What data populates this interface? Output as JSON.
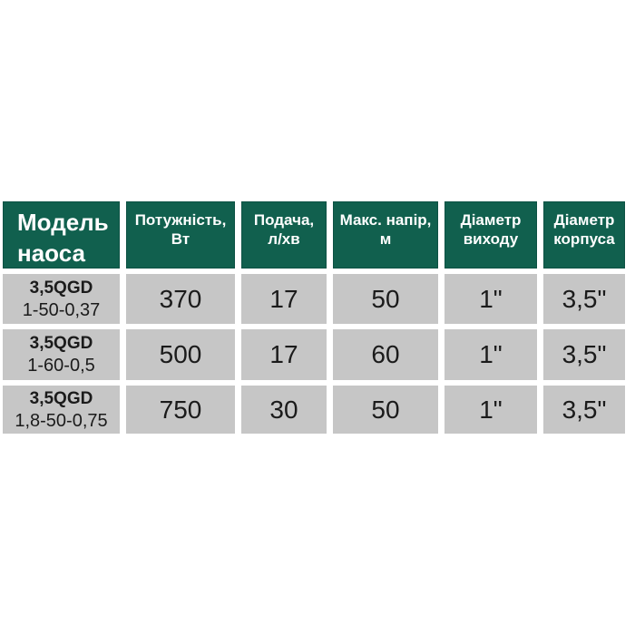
{
  "colors": {
    "page_bg": "#ffffff",
    "header_bg": "#11604e",
    "header_border": "#0d5244",
    "header_text": "#ffffff",
    "cell_bg": "#c6c6c6",
    "cell_text": "#1b1b1b"
  },
  "display": {
    "headers": [
      "Модель\nнаоса",
      "Потужність,\nВт",
      "Подача,\nл/хв",
      "Макс. напір,\nм",
      "Діаметр\nвиходу",
      "Діаметр\nкорпуса"
    ]
  },
  "table": {
    "rows": [
      {
        "model_series": "3,5QGD",
        "model_code": "1-50-0,37",
        "power_w": "370",
        "flow_l_min": "17",
        "max_head_m": "50",
        "outlet_diameter": "1\"",
        "body_diameter": "3,5\""
      },
      {
        "model_series": "3,5QGD",
        "model_code": "1-60-0,5",
        "power_w": "500",
        "flow_l_min": "17",
        "max_head_m": "60",
        "outlet_diameter": "1\"",
        "body_diameter": "3,5\""
      },
      {
        "model_series": "3,5QGD",
        "model_code": "1,8-50-0,75",
        "power_w": "750",
        "flow_l_min": "30",
        "max_head_m": "50",
        "outlet_diameter": "1\"",
        "body_diameter": "3,5\""
      }
    ]
  },
  "chart_data": {
    "type": "table",
    "title": "",
    "columns": [
      "Модель наоса",
      "Потужність, Вт",
      "Подача, л/хв",
      "Макс. напір, м",
      "Діаметр виходу",
      "Діаметр корпуса"
    ],
    "rows": [
      [
        "3,5QGD 1-50-0,37",
        370,
        17,
        50,
        "1\"",
        "3,5\""
      ],
      [
        "3,5QGD 1-60-0,5",
        500,
        17,
        60,
        "1\"",
        "3,5\""
      ],
      [
        "3,5QGD 1,8-50-0,75",
        750,
        30,
        50,
        "1\"",
        "3,5\""
      ]
    ]
  }
}
